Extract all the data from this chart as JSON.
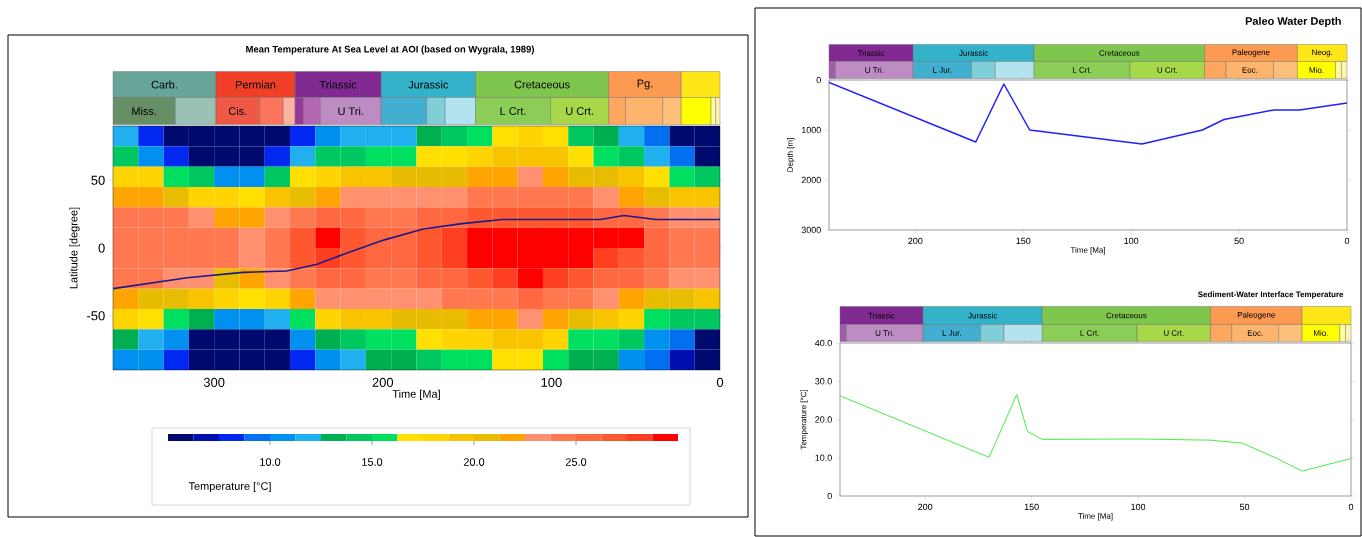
{
  "chart_data": [
    {
      "type": "heatmap",
      "title": "Mean Temperature At Sea Level at AOI (based on Wygrala, 1989)",
      "clabel": "Temperature [°C]",
      "categories": [
        null,
        null,
        null,
        null,
        null,
        null,
        null,
        null,
        null,
        null,
        null,
        null,
        null,
        null,
        null,
        null,
        null,
        null,
        null,
        null,
        null,
        null,
        null,
        null
      ],
      "y_categories": [
        null,
        null,
        null,
        null,
        null,
        null,
        null,
        null,
        null,
        null,
        null,
        null
      ],
      "cells": [
        [
          12,
          8,
          5.5,
          5.5,
          5.5,
          5.5,
          5.5,
          8,
          11,
          12,
          12,
          12,
          13,
          14,
          16,
          17,
          17.5,
          16.5,
          14,
          13.5,
          12,
          9,
          6,
          5.5
        ],
        [
          14.5,
          11,
          8,
          5.5,
          5.5,
          5.5,
          8,
          12,
          14,
          14.5,
          15,
          15.5,
          16.5,
          17,
          18,
          19,
          19.5,
          19,
          17,
          15,
          14,
          12,
          9,
          5.5
        ],
        [
          18.5,
          18,
          16,
          14,
          11,
          10,
          14,
          17,
          18.5,
          19,
          19.5,
          20,
          20.5,
          21,
          21.5,
          22,
          22.5,
          22,
          21,
          20,
          19,
          17,
          15,
          14
        ],
        [
          21.5,
          21.5,
          20,
          18.5,
          17.5,
          17,
          19,
          21,
          22,
          22.5,
          22.5,
          22.5,
          23,
          23.5,
          24,
          24.5,
          24.5,
          24.5,
          24,
          23.5,
          22,
          21,
          19.5,
          19
        ],
        [
          24,
          24,
          24,
          23,
          22,
          22,
          23,
          24,
          25,
          25,
          24.5,
          24.5,
          25,
          25.5,
          26.5,
          27,
          27,
          27,
          26.5,
          26,
          25,
          24,
          23,
          23
        ],
        [
          24.5,
          24.5,
          24.5,
          24.5,
          24,
          23.5,
          24,
          26.5,
          29,
          27,
          25.5,
          25.5,
          26.5,
          28,
          29,
          29.5,
          29.5,
          29.5,
          29.5,
          29,
          29,
          26,
          24,
          24
        ],
        [
          24.5,
          24.5,
          24.5,
          24.5,
          24,
          23.5,
          24,
          26.5,
          28,
          26.5,
          25.5,
          25.5,
          26.5,
          28,
          29,
          29.5,
          29.5,
          29.5,
          29,
          28,
          27,
          25,
          24,
          24
        ],
        [
          24,
          24,
          23.5,
          23,
          21,
          21.5,
          23,
          24.5,
          25,
          25,
          24.5,
          24.5,
          25,
          25.5,
          26.5,
          28.5,
          29,
          28,
          26.5,
          25.5,
          25,
          24,
          23.5,
          23
        ],
        [
          21.5,
          21,
          20,
          19,
          17.5,
          17,
          18.5,
          21.5,
          23,
          23.5,
          23.5,
          23.5,
          23.5,
          24,
          24.5,
          24.5,
          25,
          24.5,
          24,
          23.5,
          22,
          21,
          20,
          19.5
        ],
        [
          17.5,
          16.5,
          15,
          13,
          10.5,
          10,
          12,
          16,
          18,
          19,
          19.5,
          20,
          20.5,
          21,
          21.5,
          22,
          22.5,
          21.5,
          20.5,
          19.5,
          18.5,
          16,
          14,
          14
        ],
        [
          13,
          12,
          10,
          6,
          5.5,
          5.5,
          6,
          11,
          13.5,
          14.5,
          15,
          16,
          17,
          17.5,
          18.5,
          19,
          19.5,
          18,
          16,
          15,
          14,
          11,
          9,
          6
        ],
        [
          11,
          10,
          8,
          5.5,
          5.5,
          5.5,
          5.5,
          8,
          11,
          12,
          12.5,
          13.5,
          14,
          15,
          16,
          17,
          17,
          15,
          13.5,
          13,
          11,
          9,
          7,
          5.5
        ]
      ],
      "clim": [
        5,
        30
      ],
      "cticks": [
        {
          "value": 10,
          "label": "10.0"
        },
        {
          "value": 15,
          "label": "15.0"
        },
        {
          "value": 20,
          "label": "20.0"
        },
        {
          "value": 25,
          "label": "25.0"
        }
      ]
    },
    {
      "type": "line",
      "xlabel": "Time [Ma]",
      "ylabel": "Latitude [degree]",
      "xlim": [
        360,
        0
      ],
      "ylim": [
        -90,
        90
      ],
      "xticks": [
        300,
        200,
        100,
        0
      ],
      "yticks": [
        -50,
        0,
        50
      ],
      "series": [
        {
          "color": "#1a1a8c",
          "x": [
            360,
            316,
            283,
            257,
            239,
            222,
            199,
            176,
            153,
            129,
            106,
            83,
            71,
            57,
            38,
            0
          ],
          "values": [
            -30,
            -22,
            -18,
            -17,
            -12,
            -4,
            6,
            14,
            18,
            21,
            21,
            21,
            21,
            24,
            21,
            21
          ]
        }
      ],
      "annotations": [
        "Carb.",
        "Permian",
        "Triassic",
        "Jurassic",
        "Cretaceous",
        "Pg.",
        "Miss.",
        "Cis.",
        "U Tri.",
        "L Crt.",
        "U Crt."
      ]
    },
    {
      "type": "line",
      "title": "Paleo Water Depth",
      "xlabel": "Time [Ma]",
      "ylabel": "Depth [m]",
      "xlim": [
        240,
        0
      ],
      "ylim": [
        3000,
        0
      ],
      "xticks": [
        200,
        150,
        100,
        50,
        0
      ],
      "yticks": [
        0,
        1000,
        2000,
        3000
      ],
      "series": [
        {
          "color": "#2020ff",
          "x": [
            240,
            172,
            159,
            153,
            147,
            95,
            67,
            57,
            34,
            22,
            0
          ],
          "values": [
            50,
            1240,
            80,
            540,
            1000,
            1280,
            1000,
            790,
            600,
            600,
            460
          ]
        }
      ],
      "annotations": [
        "Triassic",
        "Jurassic",
        "Cretaceous",
        "Paleogene",
        "Neog.",
        "U Tri.",
        "L Jur.",
        "L Crt.",
        "U Crt.",
        "Eoc.",
        "Mio."
      ]
    },
    {
      "type": "line",
      "title": "Sediment-Water Interface Temperature",
      "xlabel": "Time [Ma]",
      "ylabel": "Temperature [°C]",
      "xlim": [
        240,
        0
      ],
      "ylim": [
        0,
        40
      ],
      "xticks": [
        200,
        150,
        100,
        50,
        0
      ],
      "yticks": [
        0,
        {
          "value": 10,
          "label": "10.0"
        },
        {
          "value": 20,
          "label": "20.0"
        },
        {
          "value": 30,
          "label": "30.0"
        },
        {
          "value": 40,
          "label": "40.0"
        }
      ],
      "series": [
        {
          "color": "#44ee44",
          "x": [
            240,
            170,
            157,
            152,
            145,
            100,
            66,
            51,
            34,
            23,
            0
          ],
          "values": [
            26.2,
            10.1,
            26.5,
            16.9,
            14.8,
            14.9,
            14.6,
            13.8,
            9.6,
            6.5,
            9.8
          ]
        }
      ],
      "annotations": [
        "Triassic",
        "Jurassic",
        "Cretaceous",
        "Paleogene",
        "U Tri.",
        "L Jur.",
        "L Crt.",
        "U Crt.",
        "Eoc.",
        "Mio."
      ]
    }
  ]
}
